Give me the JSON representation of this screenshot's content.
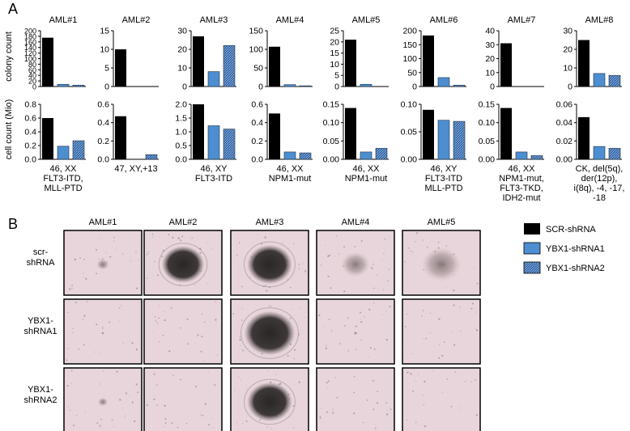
{
  "panel_labels": {
    "a": "A",
    "b": "B"
  },
  "colors": {
    "scr": "#000000",
    "shrna1": "#4d8ed0",
    "shrna2": "#3a6fae",
    "micro_bg": "#e7d5db",
    "colony": "#2a2626"
  },
  "legend": {
    "items": [
      {
        "label": "SCR-shRNA",
        "style": "solid-black"
      },
      {
        "label": "YBX1-shRNA1",
        "style": "solid-blue"
      },
      {
        "label": "YBX1-shRNA2",
        "style": "hatched-blue"
      }
    ]
  },
  "chart_data": {
    "type": "bar",
    "panel": "A",
    "series_order": [
      "SCR-shRNA",
      "YBX1-shRNA1",
      "YBX1-shRNA2"
    ],
    "rows": [
      {
        "ylabel": "colony count",
        "metric": "colony_count"
      },
      {
        "ylabel": "cell count (Mio)",
        "metric": "cell_count"
      }
    ],
    "samples": [
      {
        "title": "AML#1",
        "karyotype": [
          "46, XX",
          "FLT3-ITD,",
          "MLL-PTD"
        ],
        "colony_count": {
          "values": [
            175,
            8,
            5
          ],
          "yticks": [
            "0",
            "20",
            "40",
            "60",
            "80",
            "100",
            "120",
            "140",
            "160",
            "180",
            "200"
          ],
          "ylim": [
            0,
            200
          ]
        },
        "cell_count": {
          "values": [
            0.6,
            0.19,
            0.27
          ],
          "yticks": [
            "0.0",
            "0.2",
            "0.4",
            "0.6",
            "0.8"
          ],
          "ylim": [
            0,
            0.8
          ]
        }
      },
      {
        "title": "AML#2",
        "karyotype": [
          "47, XY,+13"
        ],
        "colony_count": {
          "values": [
            10,
            0,
            0
          ],
          "yticks": [
            "0",
            "5",
            "10",
            "15"
          ],
          "ylim": [
            0,
            15
          ]
        },
        "cell_count": {
          "values": [
            0.47,
            0,
            0.05
          ],
          "yticks": [
            "0.0",
            "0.2",
            "0.4",
            "0.6"
          ],
          "ylim": [
            0,
            0.6
          ]
        }
      },
      {
        "title": "AML#3",
        "karyotype": [
          "46, XY",
          "FLT3-ITD"
        ],
        "colony_count": {
          "values": [
            27,
            8,
            22
          ],
          "yticks": [
            "0",
            "10",
            "20",
            "30"
          ],
          "ylim": [
            0,
            30
          ]
        },
        "cell_count": {
          "values": [
            2.0,
            1.22,
            1.1
          ],
          "yticks": [
            "0.0",
            "0.5",
            "1.0",
            "1.5",
            "2.0"
          ],
          "ylim": [
            0,
            2.0
          ]
        }
      },
      {
        "title": "AML#4",
        "karyotype": [
          "46, XX",
          "NPM1-mut"
        ],
        "colony_count": {
          "values": [
            107,
            5,
            2
          ],
          "yticks": [
            "0",
            "50",
            "100",
            "150"
          ],
          "ylim": [
            0,
            150
          ]
        },
        "cell_count": {
          "values": [
            0.5,
            0.08,
            0.07
          ],
          "yticks": [
            "0.0",
            "0.2",
            "0.4",
            "0.6"
          ],
          "ylim": [
            0,
            0.6
          ]
        }
      },
      {
        "title": "AML#5",
        "karyotype": [
          "46, XX",
          "NPM1-mut"
        ],
        "colony_count": {
          "values": [
            21,
            1,
            0
          ],
          "yticks": [
            "0",
            "5",
            "10",
            "15",
            "20",
            "25"
          ],
          "ylim": [
            0,
            25
          ]
        },
        "cell_count": {
          "values": [
            0.14,
            0.02,
            0.03
          ],
          "yticks": [
            "0.00",
            "0.05",
            "0.10",
            "0.15"
          ],
          "ylim": [
            0,
            0.15
          ]
        }
      },
      {
        "title": "AML#6",
        "karyotype": [
          "46, XY",
          "FLT3-ITD",
          "MLL-PTD"
        ],
        "colony_count": {
          "values": [
            183,
            32,
            5
          ],
          "yticks": [
            "0",
            "50",
            "100",
            "150",
            "200"
          ],
          "ylim": [
            0,
            200
          ]
        },
        "cell_count": {
          "values": [
            0.09,
            0.071,
            0.069
          ],
          "yticks": [
            "0.00",
            "0.05",
            "0.10"
          ],
          "ylim": [
            0,
            0.1
          ]
        }
      },
      {
        "title": "AML#7",
        "karyotype": [
          "46, XX",
          "NPM1-mut,",
          "FLT3-TKD,",
          "IDH2-mut"
        ],
        "colony_count": {
          "values": [
            31,
            0,
            0
          ],
          "yticks": [
            "0",
            "10",
            "20",
            "30",
            "40"
          ],
          "ylim": [
            0,
            40
          ]
        },
        "cell_count": {
          "values": [
            0.14,
            0.02,
            0.01
          ],
          "yticks": [
            "0.00",
            "0.05",
            "0.10",
            "0.15"
          ],
          "ylim": [
            0,
            0.15
          ]
        }
      },
      {
        "title": "AML#8",
        "karyotype": [
          "CK, del(5q),",
          "der(12p),",
          "i(8q), -4, -17,",
          "-18"
        ],
        "colony_count": {
          "values": [
            25,
            7,
            6
          ],
          "yticks": [
            "0",
            "10",
            "20",
            "30"
          ],
          "ylim": [
            0,
            30
          ]
        },
        "cell_count": {
          "values": [
            0.046,
            0.014,
            0.012
          ],
          "yticks": [
            "0.00",
            "0.02",
            "0.04",
            "0.06"
          ],
          "ylim": [
            0,
            0.06
          ]
        }
      }
    ]
  },
  "micrographs": {
    "columns": [
      "AML#1",
      "AML#2",
      "AML#3",
      "AML#4",
      "AML#5"
    ],
    "rows": [
      {
        "label": [
          "scr-",
          "shRNA"
        ],
        "colony_size": [
          0.15,
          0.52,
          0.55,
          0.35,
          0.48
        ]
      },
      {
        "label": [
          "YBX1-",
          "shRNA1"
        ],
        "colony_size": [
          0.04,
          0.0,
          0.62,
          0.05,
          0.0
        ]
      },
      {
        "label": [
          "YBX1-",
          "shRNA2"
        ],
        "colony_size": [
          0.12,
          0.0,
          0.55,
          0.0,
          0.0
        ]
      }
    ]
  }
}
